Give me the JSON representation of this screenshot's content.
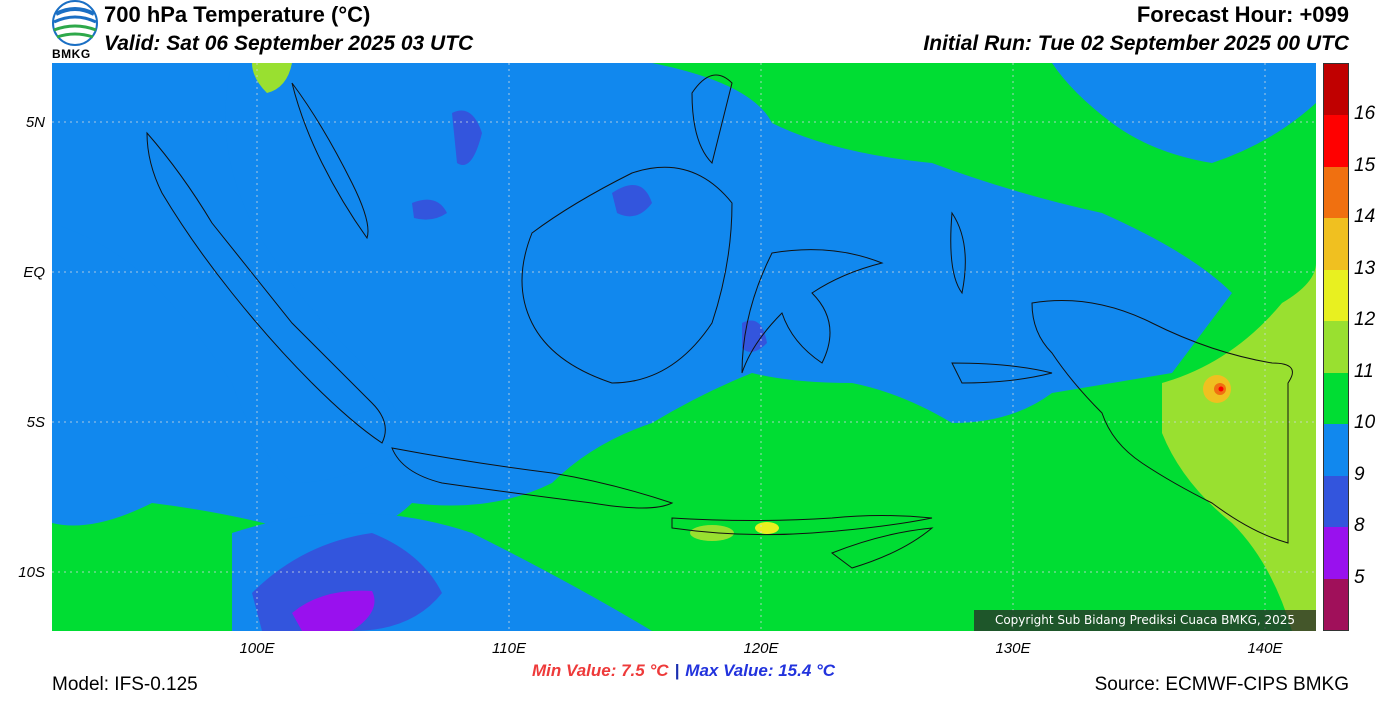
{
  "header": {
    "logo_text": "BMKG",
    "title": "700 hPa Temperature (°C)",
    "valid": "Valid: Sat 06 September 2025 03 UTC",
    "forecast_hour": "Forecast Hour: +099",
    "initial_run": "Initial Run: Tue 02 September 2025 00 UTC"
  },
  "map": {
    "lat_labels": [
      "5N",
      "EQ",
      "5S",
      "10S"
    ],
    "lon_labels": [
      "100E",
      "110E",
      "120E",
      "130E",
      "140E"
    ],
    "lat_range": [
      -12,
      7
    ],
    "lon_range": [
      92,
      142
    ],
    "grid": true,
    "copyright": "Copyright Sub Bidang Prediksi Cuaca BMKG, 2025"
  },
  "colorbar": {
    "labels": [
      "16",
      "15",
      "14",
      "13",
      "12",
      "11",
      "10",
      "9",
      "8",
      "5"
    ],
    "colors": [
      "#c00000",
      "#ff0000",
      "#f07010",
      "#f0c020",
      "#e8f020",
      "#99e030",
      "#00dd33",
      "#1188ee",
      "#3355dd",
      "#9911ee",
      "#a0105a"
    ]
  },
  "footer": {
    "model": "Model: IFS-0.125",
    "source": "Source: ECMWF-CIPS BMKG",
    "min_value": "Min Value: 7.5 °C",
    "separator": "|",
    "max_value": "Max Value: 15.4 °C"
  }
}
